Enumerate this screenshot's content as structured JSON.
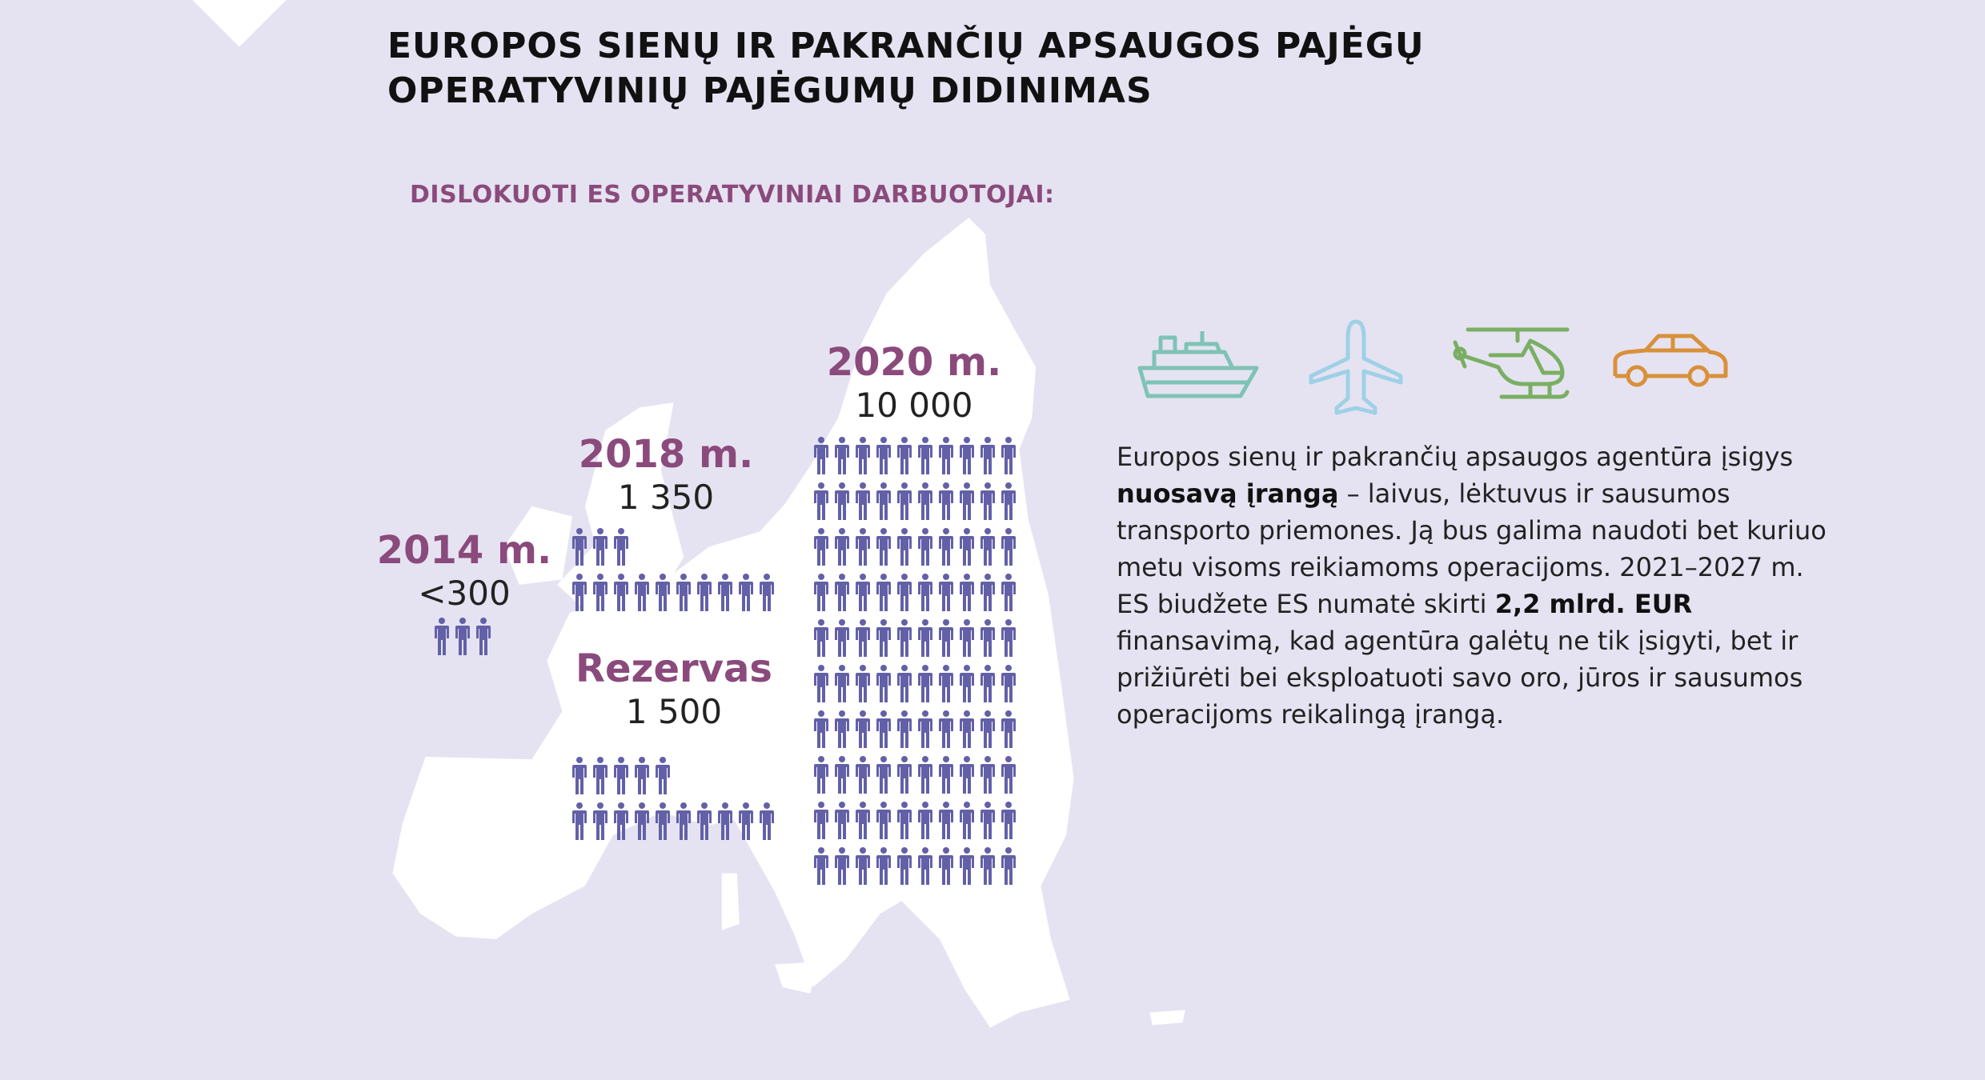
{
  "header": {
    "title": "EUROPOS SIENŲ IR PAKRANČIŲ APSAUGOS PAJĖGŲ OPERATYVINIŲ PAJĖGUMŲ DIDINIMAS",
    "subtitle": "DISLOKUOTI ES OPERATYVINIAI DARBUOTOJAI:"
  },
  "groups": [
    {
      "id": "2014",
      "label": "2014 m.",
      "value": "<300",
      "rows": [
        3
      ]
    },
    {
      "id": "2018",
      "label": "2018 m.",
      "value": "1 350",
      "rows": [
        3,
        10
      ]
    },
    {
      "id": "reserve",
      "label": "Rezervas",
      "value": "1 500",
      "rows": [
        5,
        10
      ]
    },
    {
      "id": "2020",
      "label": "2020 m.",
      "value": "10 000",
      "rows": [
        10,
        10,
        10,
        10,
        10,
        10,
        10,
        10,
        10,
        10
      ]
    }
  ],
  "equipment_icons": [
    {
      "name": "ship-icon",
      "color": "#7fc3b6"
    },
    {
      "name": "airplane-icon",
      "color": "#9fd0e6"
    },
    {
      "name": "helicopter-icon",
      "color": "#7aaf63"
    },
    {
      "name": "car-icon",
      "color": "#d9903a"
    }
  ],
  "body": {
    "p1": "Europos sienų ir pakrančių apsaugos agentūra įsigys ",
    "b1": "nuosavą įrangą",
    "p2": " – laivus, lėktuvus ir sausumos transporto priemones. Ją bus galima naudoti bet kuriuo metu visoms reikiamoms operacijoms. 2021–2027 m. ES biudžete ES numatė skirti ",
    "b2": "2,2 mlrd. EUR",
    "p3": " finansavimą, kad agentūra galėtų ne tik įsigyti, bet ir prižiūrėti bei eksploatuoti savo oro, jūros ir sausumos operacijoms reikalingą įrangą."
  },
  "colors": {
    "background": "#e5e3f1",
    "accent": "#8b4a7c",
    "person": "#6360a8",
    "map": "#ffffff"
  }
}
